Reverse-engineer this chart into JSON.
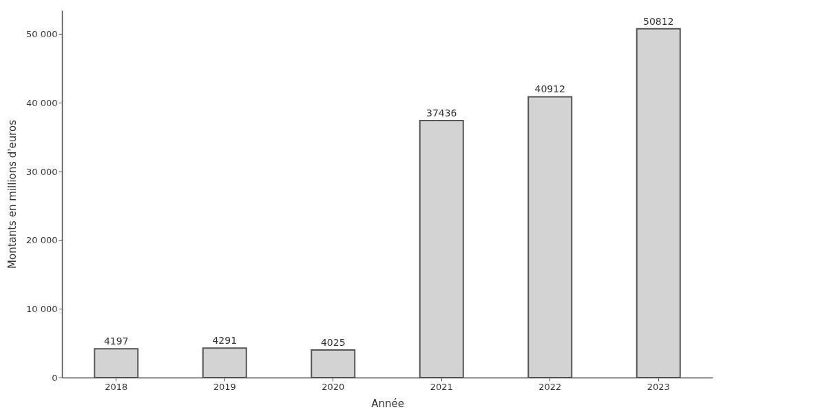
{
  "chart_data": {
    "type": "bar",
    "xlabel": "Année",
    "ylabel": "Montants en millions d'euros",
    "categories": [
      "2018",
      "2019",
      "2020",
      "2021",
      "2022",
      "2023"
    ],
    "values": [
      4197,
      4291,
      4025,
      37436,
      40912,
      50812
    ],
    "color": "#d3d3d3",
    "ylim": [
      0,
      53500
    ],
    "yticks": [
      0,
      {
        "value": 10000,
        "label": "10 000"
      },
      {
        "value": 20000,
        "label": "20 000"
      },
      {
        "value": 30000,
        "label": "30 000"
      },
      {
        "value": 40000,
        "label": "40 000"
      },
      {
        "value": 50000,
        "label": "50 000"
      }
    ],
    "data_labels": true,
    "grid": false
  }
}
